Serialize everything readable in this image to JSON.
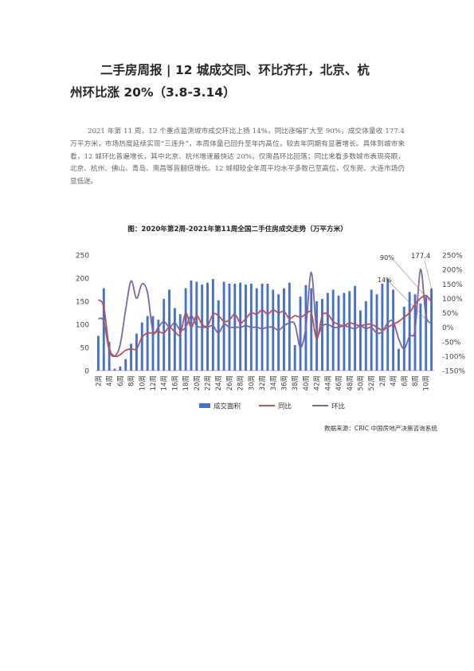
{
  "article": {
    "title_line1": "二手房周报 | 12 城成交同、环比齐升，北京、杭",
    "title_line2": "州环比涨 20%（3.8-3.14）",
    "paragraph": "2021 年第 11 周，12 个重点监测城市成交环比上扬 14%，同比涨幅扩大至 90%，成交体量收 177.4 万平方米，市场热度延续实现“三连升”，本周体量已回升至年内高位，较去年同期有显著增长。具体到城市来看，12 城环比普遍增长，其中北京、杭州增速最快达 20%，仅南昌环比回落；同比来看多数城市表现亮眼，北京、杭州、佛山、青岛、南昌等皆翻倍增长。12 城相较全年周平均水平多数已至高位，仅东莞、大连市场仍显低迷。"
  },
  "source": "数据来源：CRIC 中国房地产决策咨询系统",
  "chart_data": {
    "type": "bar",
    "title": "图：2020年第2周-2021年第11周全国二手住房成交走势（万平方米）",
    "categories": [
      "2周",
      "3周",
      "4周",
      "5周",
      "6周",
      "7周",
      "8周",
      "9周",
      "10周",
      "11周",
      "12周",
      "13周",
      "14周",
      "15周",
      "16周",
      "17周",
      "18周",
      "19周",
      "20周",
      "21周",
      "22周",
      "23周",
      "24周",
      "25周",
      "26周",
      "27周",
      "28周",
      "29周",
      "30周",
      "31周",
      "32周",
      "33周",
      "34周",
      "35周",
      "36周",
      "37周",
      "38周",
      "39周",
      "40周",
      "41周",
      "42周",
      "43周",
      "44周",
      "45周",
      "46周",
      "47周",
      "48周",
      "49周",
      "50周",
      "51周",
      "52周",
      "1周",
      "2周",
      "3周",
      "4周",
      "5周",
      "6周",
      "7周",
      "8周",
      "9周",
      "10周",
      "11周"
    ],
    "tick_labels": [
      "2周",
      "4周",
      "6周",
      "8周",
      "10周",
      "12周",
      "14周",
      "16周",
      "18周",
      "20周",
      "22周",
      "24周",
      "26周",
      "28周",
      "30周",
      "32周",
      "34周",
      "36周",
      "38周",
      "40周",
      "42周",
      "44周",
      "46周",
      "48周",
      "50周",
      "52周",
      "2周",
      "4周",
      "6周",
      "8周",
      "10周"
    ],
    "left_axis": {
      "min": 0,
      "max": 250,
      "ticks": [
        0,
        50,
        100,
        150,
        200,
        250
      ]
    },
    "right_axis": {
      "min": -150,
      "max": 250,
      "ticks": [
        "-150%",
        "-100%",
        "-50%",
        "0%",
        "50%",
        "100%",
        "150%",
        "200%",
        "250%"
      ]
    },
    "series": [
      {
        "name": "成交面积",
        "axis": "left",
        "color": "#4472C4",
        "values": [
          75,
          178,
          62,
          4,
          9,
          25,
          58,
          80,
          104,
          118,
          118,
          110,
          155,
          175,
          135,
          122,
          178,
          195,
          192,
          186,
          190,
          198,
          152,
          192,
          188,
          188,
          190,
          186,
          188,
          178,
          188,
          188,
          175,
          165,
          178,
          190,
          55,
          160,
          185,
          178,
          150,
          155,
          168,
          175,
          162,
          168,
          172,
          183,
          130,
          150,
          175,
          165,
          188,
          198,
          175,
          47,
          138,
          170,
          165,
          145,
          160,
          177.4
        ]
      },
      {
        "name": "同比",
        "axis": "right",
        "color": "#C0504D",
        "values": [
          95,
          70,
          -70,
          -100,
          -95,
          -80,
          -75,
          -75,
          -35,
          -20,
          -20,
          -15,
          -20,
          0,
          -15,
          -25,
          50,
          0,
          40,
          10,
          5,
          45,
          40,
          20,
          25,
          45,
          15,
          30,
          50,
          45,
          60,
          45,
          60,
          50,
          55,
          30,
          40,
          35,
          45,
          50,
          -40,
          40,
          45,
          20,
          10,
          5,
          15,
          10,
          5,
          10,
          10,
          0,
          -10,
          0,
          10,
          20,
          35,
          50,
          80,
          100,
          110,
          90
        ]
      },
      {
        "name": "环比",
        "axis": "right",
        "color": "#8064A2",
        "values": [
          30,
          20,
          -80,
          -100,
          -60,
          60,
          160,
          100,
          150,
          120,
          -15,
          0,
          20,
          0,
          15,
          -10,
          0,
          40,
          5,
          0,
          0,
          5,
          -20,
          10,
          0,
          0,
          0,
          5,
          0,
          0,
          -5,
          0,
          0,
          -10,
          5,
          15,
          10,
          -70,
          0,
          190,
          -15,
          5,
          10,
          0,
          0,
          5,
          0,
          -5,
          5,
          -5,
          0,
          -20,
          -15,
          15,
          20,
          -40,
          -75,
          -30,
          -10,
          200,
          40,
          14
        ]
      }
    ],
    "annotations": [
      "90%",
      "14%",
      "177.4"
    ],
    "legend_position": "bottom"
  }
}
